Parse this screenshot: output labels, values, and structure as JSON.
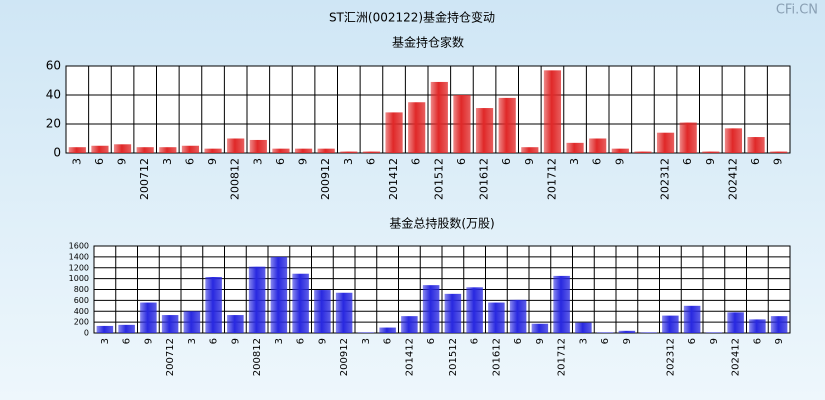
{
  "title": "ST汇洲(002122)基金持仓变动",
  "watermark": "CFi.CN",
  "chart_data": [
    {
      "type": "bar",
      "title": "基金持仓家数",
      "categories": [
        "3",
        "6",
        "9",
        "200712",
        "3",
        "6",
        "9",
        "200812",
        "3",
        "6",
        "9",
        "200912",
        "3",
        "6",
        "201412",
        "6",
        "201512",
        "6",
        "201612",
        "6",
        "9",
        "201712",
        "3",
        "6",
        "9",
        null,
        "202312",
        "6",
        "9",
        "202412",
        "6",
        "9"
      ],
      "values": [
        4,
        5,
        6,
        4,
        4,
        5,
        3,
        10,
        9,
        3,
        3,
        3,
        1,
        1,
        28,
        35,
        49,
        40,
        31,
        38,
        4,
        57,
        7,
        10,
        3,
        1,
        14,
        21,
        1,
        17,
        11,
        1
      ],
      "color": "#e02828",
      "ylim": [
        0,
        60
      ],
      "yticks": [
        0,
        20,
        40,
        60
      ],
      "grid": true
    },
    {
      "type": "bar",
      "title": "基金总持股数(万股)",
      "categories": [
        "3",
        "6",
        "9",
        "200712",
        "3",
        "6",
        "9",
        "200812",
        "3",
        "6",
        "9",
        "200912",
        "3",
        "6",
        "201412",
        "6",
        "201512",
        "6",
        "201612",
        "6",
        "9",
        "201712",
        "3",
        "6",
        "9",
        null,
        "202312",
        "6",
        "9",
        "202412",
        "6",
        "9"
      ],
      "values": [
        130,
        150,
        560,
        330,
        400,
        1030,
        330,
        1220,
        1400,
        1090,
        790,
        740,
        10,
        100,
        310,
        880,
        720,
        840,
        560,
        610,
        170,
        1050,
        190,
        10,
        40,
        10,
        320,
        500,
        10,
        380,
        250,
        310
      ],
      "color": "#2828e0",
      "ylim": [
        0,
        1600
      ],
      "yticks": [
        0,
        200,
        400,
        600,
        800,
        1000,
        1200,
        1400,
        1600
      ],
      "grid": true
    }
  ]
}
